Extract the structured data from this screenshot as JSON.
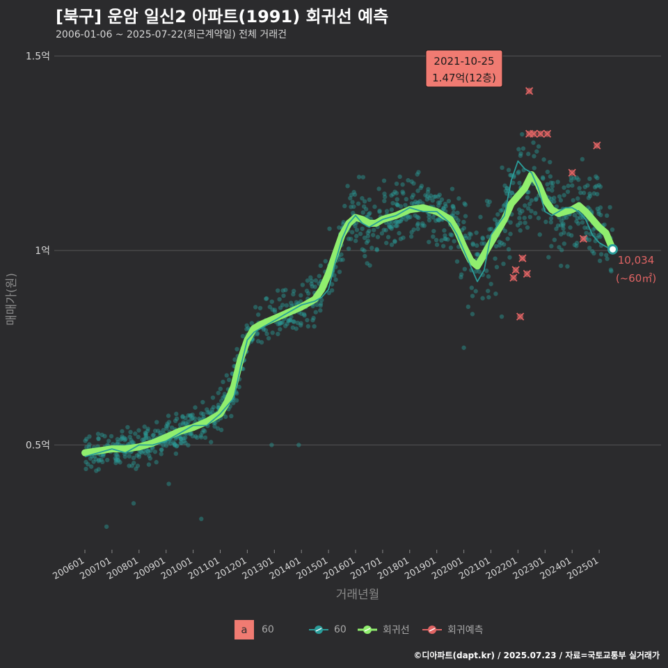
{
  "header": {
    "title": "[북구] 운암 일신2 아파트(1991) 회귀선 예측",
    "subtitle": "2006-01-06 ~ 2025-07-22(최근계약일) 전체 거래건"
  },
  "footer": {
    "caption": "©디아파트(dapt.kr) / 2025.07.23 / 자료=국토교통부 실거래가"
  },
  "legend": {
    "a_key": "a",
    "a_label": "60",
    "items": [
      {
        "label": "60",
        "color": "#2a9d9a"
      },
      {
        "label": "회귀선",
        "color": "#90ee6e"
      },
      {
        "label": "회귀예측",
        "color": "#e06464"
      }
    ]
  },
  "colors": {
    "background": "#2b2b2d",
    "grid": "#555555",
    "points": "#2a9d9a",
    "regression": "#90ee6e",
    "prediction": "#e06464",
    "callout_fill": "#f07b72"
  },
  "chart_data": {
    "type": "scatter",
    "xlabel": "거래년월",
    "ylabel": "매매가(원)",
    "ylim": [
      0.25,
      1.55
    ],
    "xlim": [
      "2005-10",
      "2026-03"
    ],
    "y_ticks": [
      {
        "value": 0.5,
        "label": "0.5억"
      },
      {
        "value": 1.0,
        "label": "1억"
      },
      {
        "value": 1.5,
        "label": "1.5억"
      }
    ],
    "x_ticks": [
      "200601",
      "200701",
      "200801",
      "200901",
      "201001",
      "201101",
      "201201",
      "201301",
      "201401",
      "201501",
      "201601",
      "201701",
      "201801",
      "201901",
      "202001",
      "202101",
      "202201",
      "202301",
      "202401",
      "202501"
    ],
    "grid": true,
    "legend_position": "bottom",
    "series": [
      {
        "name": "회귀선",
        "points": [
          [
            "2006-01",
            0.48
          ],
          [
            "2006-07",
            0.485
          ],
          [
            "2007-01",
            0.49
          ],
          [
            "2007-07",
            0.49
          ],
          [
            "2008-01",
            0.495
          ],
          [
            "2008-07",
            0.505
          ],
          [
            "2009-01",
            0.52
          ],
          [
            "2009-07",
            0.535
          ],
          [
            "2010-01",
            0.545
          ],
          [
            "2010-07",
            0.56
          ],
          [
            "2011-01",
            0.58
          ],
          [
            "2011-04",
            0.61
          ],
          [
            "2011-07",
            0.65
          ],
          [
            "2011-10",
            0.72
          ],
          [
            "2012-01",
            0.77
          ],
          [
            "2012-04",
            0.8
          ],
          [
            "2012-07",
            0.81
          ],
          [
            "2013-01",
            0.825
          ],
          [
            "2013-07",
            0.84
          ],
          [
            "2014-01",
            0.855
          ],
          [
            "2014-07",
            0.875
          ],
          [
            "2014-10",
            0.9
          ],
          [
            "2015-01",
            0.94
          ],
          [
            "2015-04",
            0.99
          ],
          [
            "2015-07",
            1.04
          ],
          [
            "2015-10",
            1.07
          ],
          [
            "2016-01",
            1.085
          ],
          [
            "2016-04",
            1.08
          ],
          [
            "2016-07",
            1.07
          ],
          [
            "2016-10",
            1.07
          ],
          [
            "2017-01",
            1.08
          ],
          [
            "2017-07",
            1.09
          ],
          [
            "2018-01",
            1.105
          ],
          [
            "2018-07",
            1.11
          ],
          [
            "2019-01",
            1.1
          ],
          [
            "2019-07",
            1.08
          ],
          [
            "2019-10",
            1.05
          ],
          [
            "2020-01",
            1.01
          ],
          [
            "2020-04",
            0.975
          ],
          [
            "2020-07",
            0.96
          ],
          [
            "2020-10",
            0.99
          ],
          [
            "2021-01",
            1.02
          ],
          [
            "2021-07",
            1.08
          ],
          [
            "2021-10",
            1.12
          ],
          [
            "2022-01",
            1.14
          ],
          [
            "2022-04",
            1.16
          ],
          [
            "2022-07",
            1.195
          ],
          [
            "2022-10",
            1.17
          ],
          [
            "2023-01",
            1.13
          ],
          [
            "2023-04",
            1.105
          ],
          [
            "2023-07",
            1.095
          ],
          [
            "2023-10",
            1.1
          ],
          [
            "2024-01",
            1.105
          ],
          [
            "2024-04",
            1.115
          ],
          [
            "2024-07",
            1.1
          ],
          [
            "2024-10",
            1.08
          ],
          [
            "2025-01",
            1.06
          ],
          [
            "2025-04",
            1.045
          ],
          [
            "2025-07",
            1.003
          ]
        ]
      },
      {
        "name": "60",
        "points": [
          [
            "2006-01",
            0.47
          ],
          [
            "2006-07",
            0.48
          ],
          [
            "2007-01",
            0.49
          ],
          [
            "2007-07",
            0.48
          ],
          [
            "2008-01",
            0.5
          ],
          [
            "2008-07",
            0.5
          ],
          [
            "2009-01",
            0.51
          ],
          [
            "2009-07",
            0.53
          ],
          [
            "2010-01",
            0.55
          ],
          [
            "2010-07",
            0.55
          ],
          [
            "2011-01",
            0.58
          ],
          [
            "2011-04",
            0.6
          ],
          [
            "2011-07",
            0.62
          ],
          [
            "2011-10",
            0.7
          ],
          [
            "2012-01",
            0.77
          ],
          [
            "2012-04",
            0.79
          ],
          [
            "2012-07",
            0.8
          ],
          [
            "2013-01",
            0.82
          ],
          [
            "2013-07",
            0.84
          ],
          [
            "2014-01",
            0.86
          ],
          [
            "2014-07",
            0.87
          ],
          [
            "2014-10",
            0.88
          ],
          [
            "2015-01",
            0.9
          ],
          [
            "2015-04",
            0.97
          ],
          [
            "2015-07",
            1.03
          ],
          [
            "2015-10",
            1.07
          ],
          [
            "2016-01",
            1.09
          ],
          [
            "2016-04",
            1.07
          ],
          [
            "2016-07",
            1.06
          ],
          [
            "2016-10",
            1.07
          ],
          [
            "2017-01",
            1.08
          ],
          [
            "2017-07",
            1.09
          ],
          [
            "2018-01",
            1.11
          ],
          [
            "2018-07",
            1.1
          ],
          [
            "2019-01",
            1.1
          ],
          [
            "2019-07",
            1.07
          ],
          [
            "2019-10",
            1.04
          ],
          [
            "2020-01",
            1.0
          ],
          [
            "2020-04",
            0.96
          ],
          [
            "2020-07",
            0.92
          ],
          [
            "2020-10",
            0.95
          ],
          [
            "2021-01",
            1.04
          ],
          [
            "2021-07",
            1.09
          ],
          [
            "2021-10",
            1.18
          ],
          [
            "2022-01",
            1.23
          ],
          [
            "2022-04",
            1.21
          ],
          [
            "2022-07",
            1.2
          ],
          [
            "2022-10",
            1.16
          ],
          [
            "2023-01",
            1.1
          ],
          [
            "2023-04",
            1.09
          ],
          [
            "2023-07",
            1.1
          ],
          [
            "2023-10",
            1.11
          ],
          [
            "2024-01",
            1.11
          ],
          [
            "2024-04",
            1.1
          ],
          [
            "2024-07",
            1.08
          ],
          [
            "2024-10",
            1.04
          ],
          [
            "2025-01",
            1.02
          ],
          [
            "2025-04",
            1.01
          ],
          [
            "2025-07",
            1.0
          ]
        ]
      },
      {
        "name": "회귀예측",
        "points": [
          [
            "2021-11",
            0.93
          ],
          [
            "2021-12",
            0.95
          ],
          [
            "2022-02",
            0.83
          ],
          [
            "2022-03",
            0.98
          ],
          [
            "2022-05",
            0.94
          ],
          [
            "2022-06",
            1.41
          ],
          [
            "2022-06",
            1.3
          ],
          [
            "2022-08",
            1.3
          ],
          [
            "2022-11",
            1.3
          ],
          [
            "2023-02",
            1.3
          ],
          [
            "2024-01",
            1.2
          ],
          [
            "2024-06",
            1.03
          ],
          [
            "2024-12",
            1.27
          ]
        ]
      }
    ],
    "annotations": {
      "callout_date": "2021-10-25",
      "callout_value": "1.47억(12층)",
      "callout_point": [
        "2022-05",
        1.47
      ],
      "end_value": "10,034",
      "end_area": "(~60㎡)",
      "end_point": [
        "2025-07",
        1.003
      ]
    }
  }
}
